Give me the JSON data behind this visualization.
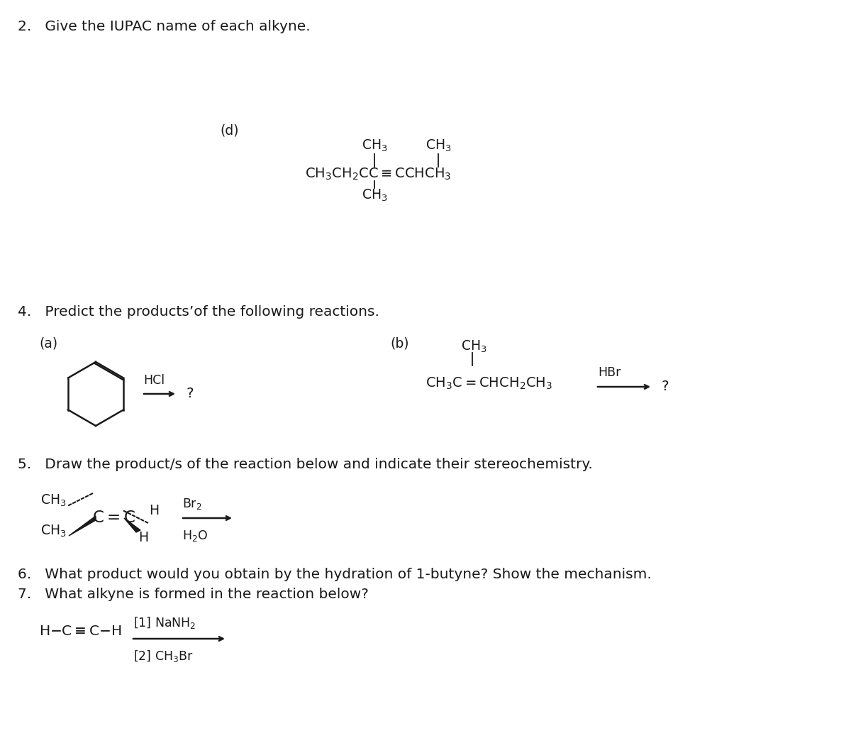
{
  "bg_color": "#ffffff",
  "text_color": "#1a1a1a",
  "q2_title": "2.   Give the IUPAC name of each alkyne.",
  "q4_title": "4.   Predict the products’of the following reactions.",
  "q5_title": "5.   Draw the product/s of the reaction below and indicate their stereochemistry.",
  "q6_title": "6.   What product would you obtain by the hydration of 1-butyne? Show the mechanism.",
  "q7_title": "7.   What alkyne is formed in the reaction below?",
  "fs": 14.5,
  "fc": 13.5
}
